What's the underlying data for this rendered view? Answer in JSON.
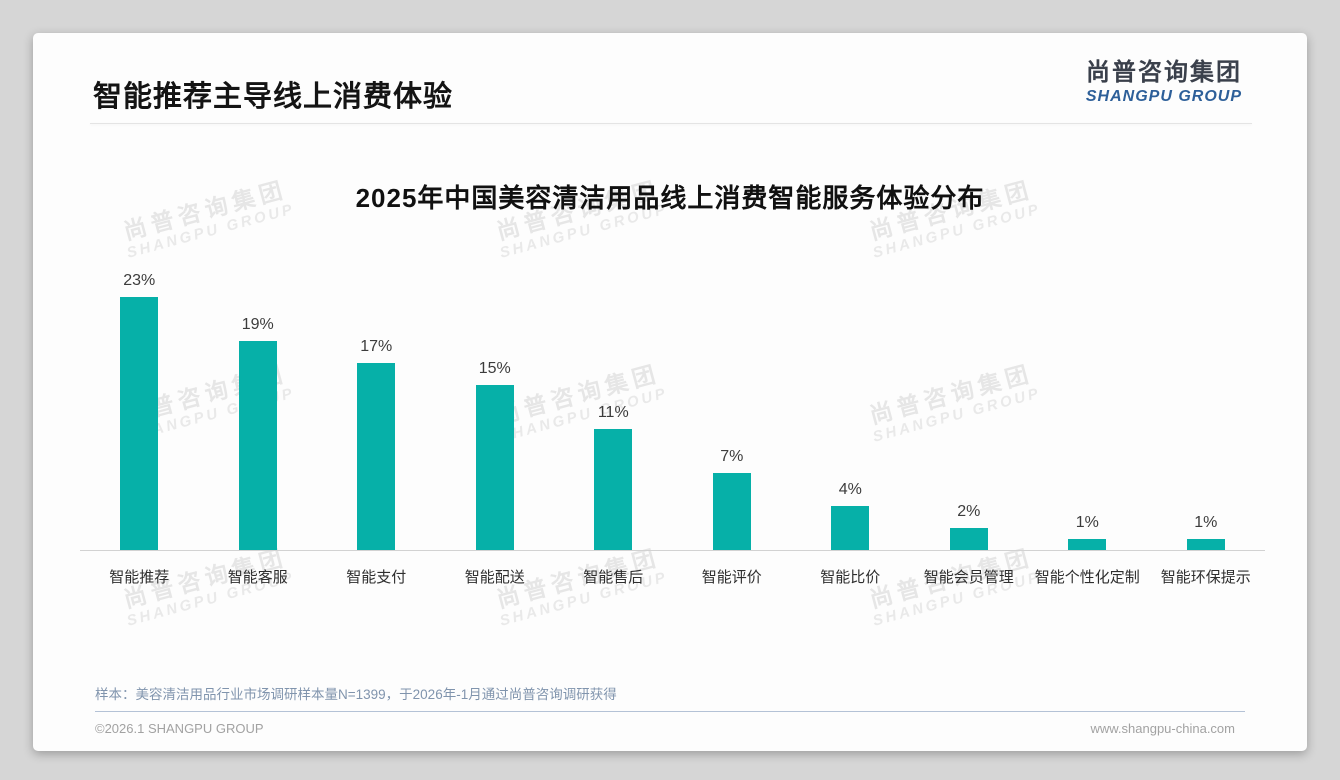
{
  "page": {
    "title": "智能推荐主导线上消费体验",
    "logo": {
      "cn": "尚普咨询集团",
      "en": "SHANGPU GROUP"
    },
    "watermark": {
      "cn": "尚普咨询集团",
      "en": "SHANGPU GROUP"
    },
    "footnote": "样本：美容清洁用品行业市场调研样本量N=1399，于2026年-1月通过尚普咨询调研获得",
    "footer": {
      "left": "©2026.1 SHANGPU GROUP",
      "right": "www.shangpu-china.com"
    }
  },
  "colors": {
    "accent_teal": "#06b0a8",
    "logo_blue": "#2d5f99",
    "page_background": "#d6d6d6",
    "card_background": "#fdfdfd"
  },
  "chart_data": {
    "type": "bar",
    "title": "2025年中国美容清洁用品线上消费智能服务体验分布",
    "categories": [
      "智能推荐",
      "智能客服",
      "智能支付",
      "智能配送",
      "智能售后",
      "智能评价",
      "智能比价",
      "智能会员管理",
      "智能个性化定制",
      "智能环保提示"
    ],
    "values": [
      23,
      19,
      17,
      15,
      11,
      7,
      4,
      2,
      1,
      1
    ],
    "unit": "%",
    "data_labels": true,
    "bar_color": "#06b0a8",
    "xlabel": "",
    "ylabel": "",
    "ylim": [
      0,
      25
    ],
    "grid": false,
    "legend": false
  }
}
